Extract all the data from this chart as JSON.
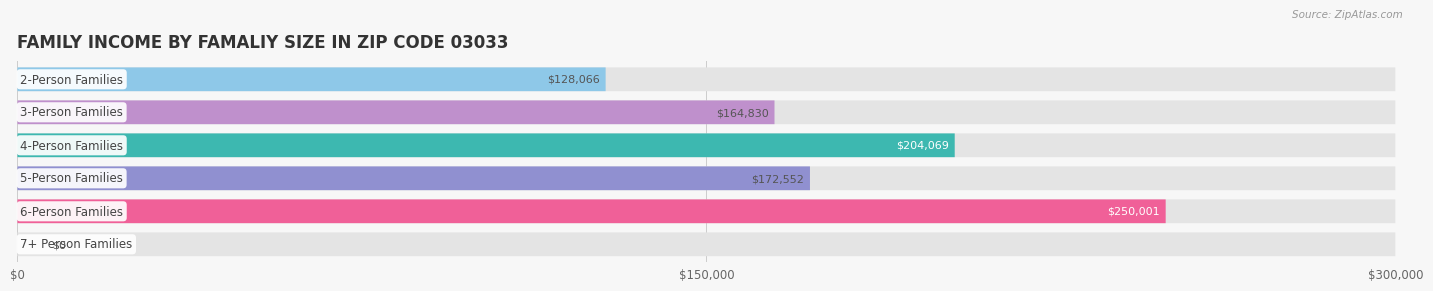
{
  "title": "FAMILY INCOME BY FAMALIY SIZE IN ZIP CODE 03033",
  "source": "Source: ZipAtlas.com",
  "categories": [
    "2-Person Families",
    "3-Person Families",
    "4-Person Families",
    "5-Person Families",
    "6-Person Families",
    "7+ Person Families"
  ],
  "values": [
    128066,
    164830,
    204069,
    172552,
    250001,
    0
  ],
  "bar_colors": [
    "#8ec8e8",
    "#bf90cc",
    "#3db8b0",
    "#9090d0",
    "#f06098",
    "#f5cfa0"
  ],
  "value_label_colors": [
    "#555555",
    "#555555",
    "#ffffff",
    "#555555",
    "#ffffff",
    "#555555"
  ],
  "xmax": 300000,
  "xticks": [
    0,
    150000,
    300000
  ],
  "xticklabels": [
    "$0",
    "$150,000",
    "$300,000"
  ],
  "background_color": "#f7f7f7",
  "bar_bg_color": "#e4e4e4",
  "title_fontsize": 12,
  "label_fontsize": 8.5,
  "value_fontsize": 8,
  "source_fontsize": 7.5
}
